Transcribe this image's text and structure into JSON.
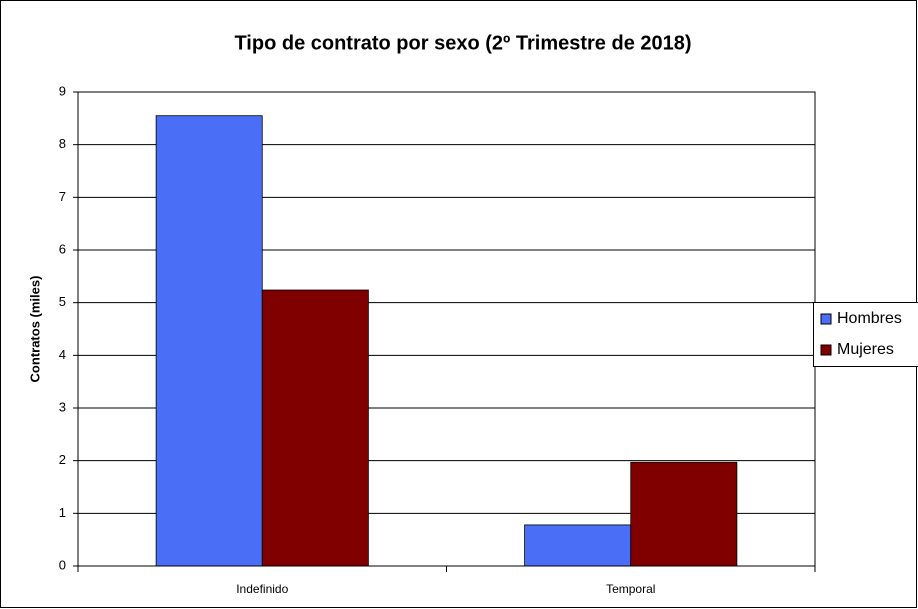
{
  "chart_data": {
    "type": "bar",
    "title": "Tipo de contrato por sexo (2º Trimestre de 2018)",
    "y_label": "Contratos (miles)",
    "categories": [
      "Indefinido",
      "Temporal"
    ],
    "series": [
      {
        "name": "Hombres",
        "color": "#4a6ef5",
        "values": [
          8.55,
          0.78
        ]
      },
      {
        "name": "Mujeres",
        "color": "#800000",
        "values": [
          5.24,
          1.97
        ]
      }
    ],
    "ylim": [
      0,
      9
    ],
    "yticks": [
      0,
      1,
      2,
      3,
      4,
      5,
      6,
      7,
      8,
      9
    ],
    "grid": true,
    "legend": "right"
  }
}
